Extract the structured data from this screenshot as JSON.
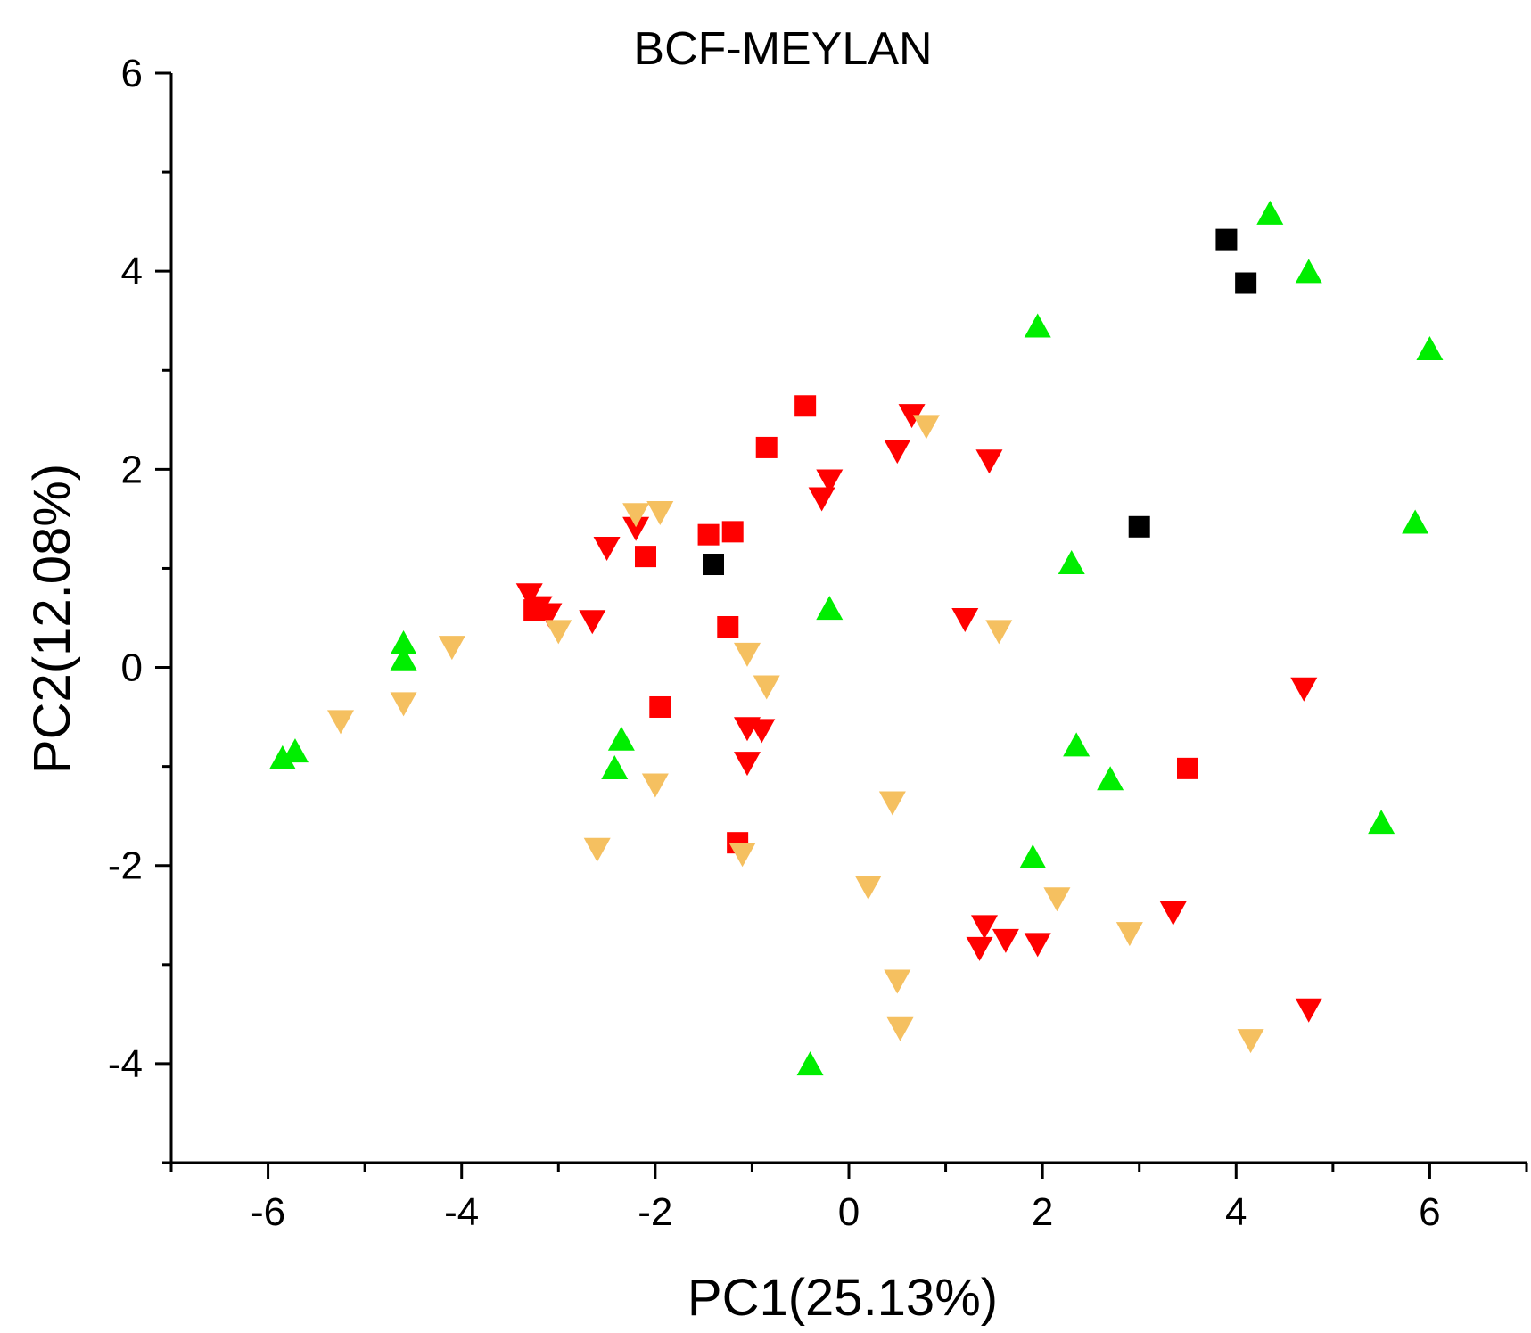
{
  "chart_data": {
    "type": "scatter",
    "title": "BCF-MEYLAN",
    "xlabel": "PC1(25.13%)",
    "ylabel": "PC2(12.08%)",
    "xlim": [
      -7,
      7
    ],
    "ylim": [
      -5,
      6
    ],
    "xticks": [
      -6,
      -4,
      -2,
      0,
      2,
      4,
      6
    ],
    "yticks": [
      -4,
      -2,
      0,
      2,
      4,
      6
    ],
    "xtick_labels": [
      "-6",
      "-4",
      "-2",
      "0",
      "2",
      "4",
      "6"
    ],
    "ytick_labels": [
      "-4",
      "-2",
      "0",
      "2",
      "4",
      "6"
    ],
    "grid": false,
    "series": [
      {
        "name": "black-square",
        "marker": "square",
        "color": "#000000",
        "points": [
          [
            3.9,
            4.32
          ],
          [
            4.1,
            3.88
          ],
          [
            3.0,
            1.42
          ],
          [
            -1.4,
            1.04
          ]
        ]
      },
      {
        "name": "red-square",
        "marker": "square",
        "color": "#ff0000",
        "points": [
          [
            -0.45,
            2.64
          ],
          [
            -0.85,
            2.22
          ],
          [
            -1.45,
            1.34
          ],
          [
            -1.2,
            1.37
          ],
          [
            -2.1,
            1.12
          ],
          [
            -3.25,
            0.58
          ],
          [
            -1.25,
            0.41
          ],
          [
            -1.95,
            -0.4
          ],
          [
            3.5,
            -1.02
          ],
          [
            -1.15,
            -1.77
          ]
        ]
      },
      {
        "name": "green-triangle-up",
        "marker": "triangle-up",
        "color": "#00ee00",
        "points": [
          [
            4.35,
            4.57
          ],
          [
            4.75,
            3.98
          ],
          [
            1.95,
            3.43
          ],
          [
            6.0,
            3.2
          ],
          [
            5.85,
            1.45
          ],
          [
            2.3,
            1.04
          ],
          [
            -0.2,
            0.58
          ],
          [
            -4.6,
            0.23
          ],
          [
            -4.6,
            0.07
          ],
          [
            -5.85,
            -0.93
          ],
          [
            -5.72,
            -0.86
          ],
          [
            -2.35,
            -0.74
          ],
          [
            -2.42,
            -1.03
          ],
          [
            2.35,
            -0.8
          ],
          [
            2.7,
            -1.14
          ],
          [
            5.5,
            -1.58
          ],
          [
            1.9,
            -1.93
          ],
          [
            -0.4,
            -4.02
          ]
        ]
      },
      {
        "name": "red-triangle-down",
        "marker": "triangle-down",
        "color": "#ff0000",
        "points": [
          [
            0.65,
            2.56
          ],
          [
            0.5,
            2.2
          ],
          [
            1.45,
            2.1
          ],
          [
            -0.2,
            1.9
          ],
          [
            -0.28,
            1.72
          ],
          [
            -2.5,
            1.22
          ],
          [
            -2.2,
            1.42
          ],
          [
            -3.3,
            0.75
          ],
          [
            -3.2,
            0.62
          ],
          [
            -3.1,
            0.55
          ],
          [
            -2.65,
            0.48
          ],
          [
            1.2,
            0.5
          ],
          [
            4.7,
            -0.2
          ],
          [
            -1.05,
            -0.6
          ],
          [
            -0.9,
            -0.62
          ],
          [
            -1.05,
            -0.95
          ],
          [
            1.4,
            -2.6
          ],
          [
            1.35,
            -2.82
          ],
          [
            1.62,
            -2.74
          ],
          [
            1.95,
            -2.78
          ],
          [
            3.35,
            -2.46
          ],
          [
            4.75,
            -3.44
          ]
        ]
      },
      {
        "name": "orange-triangle-down",
        "marker": "triangle-down",
        "color": "#f5c060",
        "points": [
          [
            0.8,
            2.45
          ],
          [
            -2.2,
            1.56
          ],
          [
            -1.95,
            1.58
          ],
          [
            -3.0,
            0.38
          ],
          [
            -4.1,
            0.22
          ],
          [
            1.55,
            0.38
          ],
          [
            -1.05,
            0.15
          ],
          [
            -0.85,
            -0.18
          ],
          [
            -5.25,
            -0.53
          ],
          [
            -4.6,
            -0.35
          ],
          [
            -2.0,
            -1.17
          ],
          [
            0.45,
            -1.35
          ],
          [
            -2.6,
            -1.82
          ],
          [
            -1.1,
            -1.87
          ],
          [
            0.2,
            -2.2
          ],
          [
            2.15,
            -2.32
          ],
          [
            2.9,
            -2.67
          ],
          [
            0.5,
            -3.15
          ],
          [
            0.53,
            -3.63
          ],
          [
            4.15,
            -3.75
          ]
        ]
      }
    ]
  }
}
